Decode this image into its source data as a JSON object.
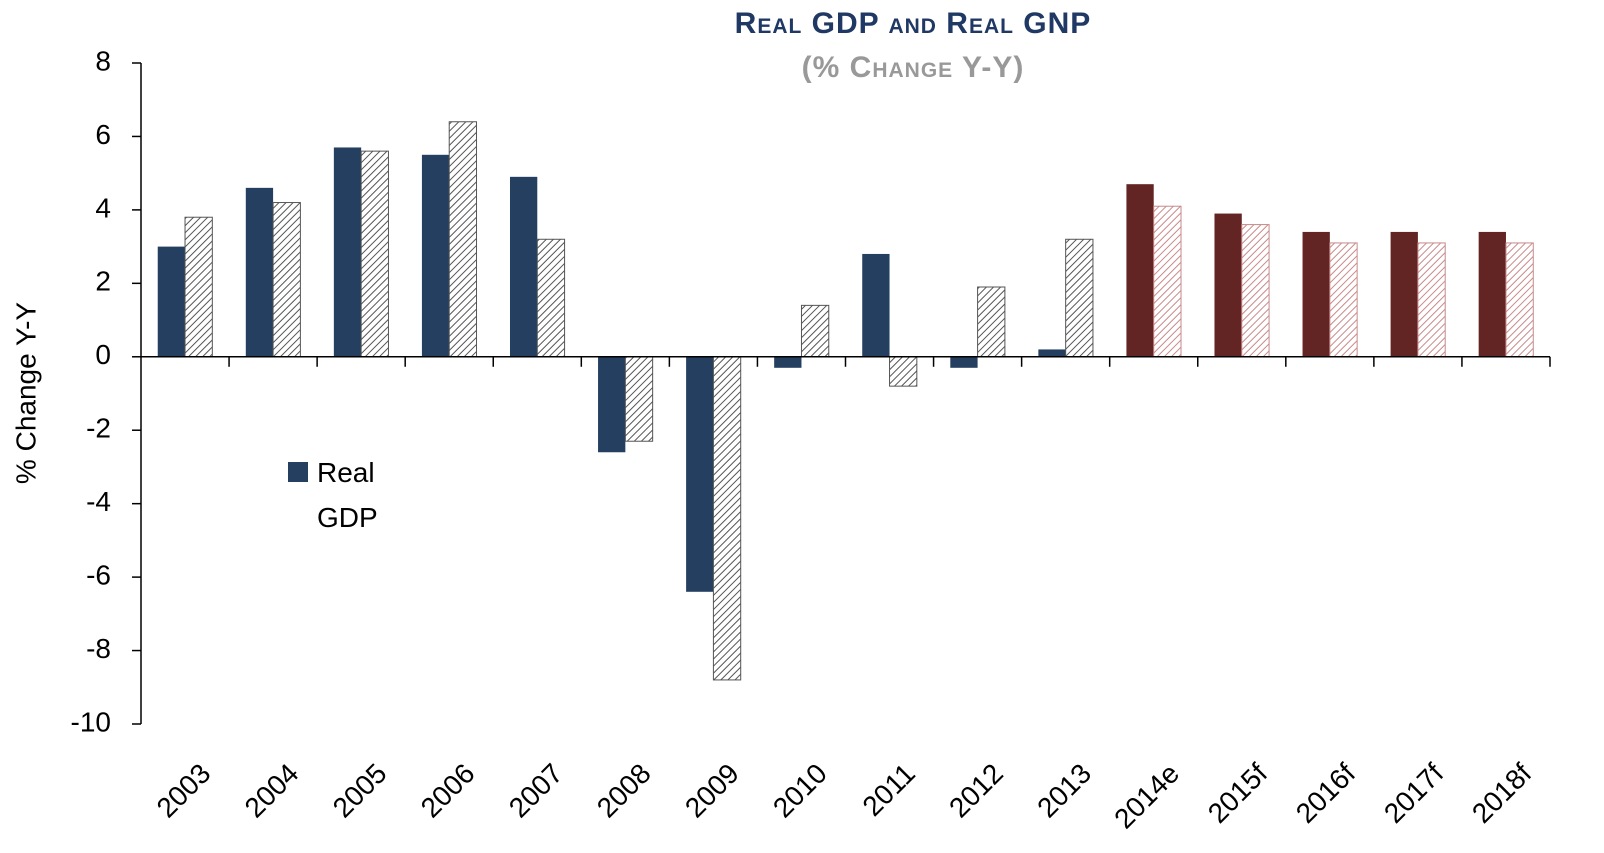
{
  "chart_data": {
    "type": "bar",
    "title": "Real GDP and Real GNP",
    "subtitle": "(% Change Y-Y)",
    "y_label": "% Change Y-Y",
    "categories": [
      "2003",
      "2004",
      "2005",
      "2006",
      "2007",
      "2008",
      "2009",
      "2010",
      "2011",
      "2012",
      "2013",
      "2014e",
      "2015f",
      "2016f",
      "2017f",
      "2018f"
    ],
    "series": [
      {
        "name": "Real GDP",
        "color": "#243f60",
        "hatch": false,
        "colors": [
          "#243f60",
          "#243f60",
          "#243f60",
          "#243f60",
          "#243f60",
          "#243f60",
          "#243f60",
          "#243f60",
          "#243f60",
          "#243f60",
          "#243f60",
          "#632523",
          "#632523",
          "#632523",
          "#632523",
          "#632523"
        ],
        "values": [
          3.0,
          4.6,
          5.7,
          5.5,
          4.9,
          -2.6,
          -6.4,
          -0.3,
          2.8,
          -0.3,
          0.2,
          4.7,
          3.9,
          3.4,
          3.4,
          3.4
        ]
      },
      {
        "color": "#555555",
        "hatch": true,
        "colors": [
          "#555555",
          "#555555",
          "#555555",
          "#555555",
          "#555555",
          "#555555",
          "#555555",
          "#555555",
          "#555555",
          "#555555",
          "#555555",
          "#c88a8a",
          "#c88a8a",
          "#c88a8a",
          "#c88a8a",
          "#c88a8a"
        ],
        "values": [
          3.8,
          4.2,
          5.6,
          6.4,
          3.2,
          -2.3,
          -8.8,
          1.4,
          -0.8,
          1.9,
          3.2,
          4.1,
          3.6,
          3.1,
          3.1,
          3.1
        ]
      }
    ],
    "ylim": [
      -10,
      8
    ],
    "yticks": [
      -10,
      -8,
      -6,
      -4,
      -2,
      0,
      2,
      4,
      6,
      8
    ],
    "grid": false,
    "legend": "left"
  }
}
